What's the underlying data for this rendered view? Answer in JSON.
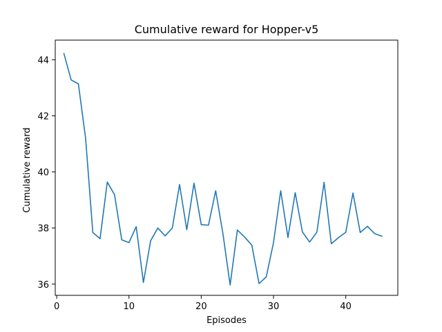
{
  "chart_data": {
    "type": "line",
    "title": "Cumulative reward for Hopper-v5",
    "xlabel": "Episodes",
    "ylabel": "Cumulative reward",
    "xlim": [
      -0.2,
      47.2
    ],
    "ylim": [
      35.6,
      44.7
    ],
    "xticks": [
      0,
      10,
      20,
      30,
      40
    ],
    "yticks": [
      36,
      38,
      40,
      42,
      44
    ],
    "grid": false,
    "line_color": "#1f77b4",
    "series": [
      {
        "x": [
          1,
          2,
          3,
          4,
          5,
          6,
          7,
          8,
          9,
          10,
          11,
          12,
          13,
          14,
          15,
          16,
          17,
          18,
          19,
          20,
          21,
          22,
          23,
          24,
          25,
          26,
          27,
          28,
          29,
          30,
          31,
          32,
          33,
          34,
          35,
          36,
          37,
          38,
          39,
          40,
          41,
          42,
          43,
          44,
          45
        ],
        "values": [
          44.22,
          43.28,
          43.14,
          41.2,
          37.84,
          37.62,
          39.64,
          39.19,
          37.58,
          37.48,
          38.05,
          36.06,
          37.55,
          38.0,
          37.72,
          38.0,
          39.55,
          37.94,
          39.6,
          38.12,
          38.1,
          39.33,
          37.8,
          35.97,
          37.93,
          37.68,
          37.39,
          36.02,
          36.26,
          37.48,
          39.33,
          37.66,
          39.26,
          37.86,
          37.5,
          37.85,
          39.63,
          37.44,
          37.66,
          37.85,
          39.25,
          37.84,
          38.06,
          37.8,
          37.71
        ]
      }
    ]
  }
}
